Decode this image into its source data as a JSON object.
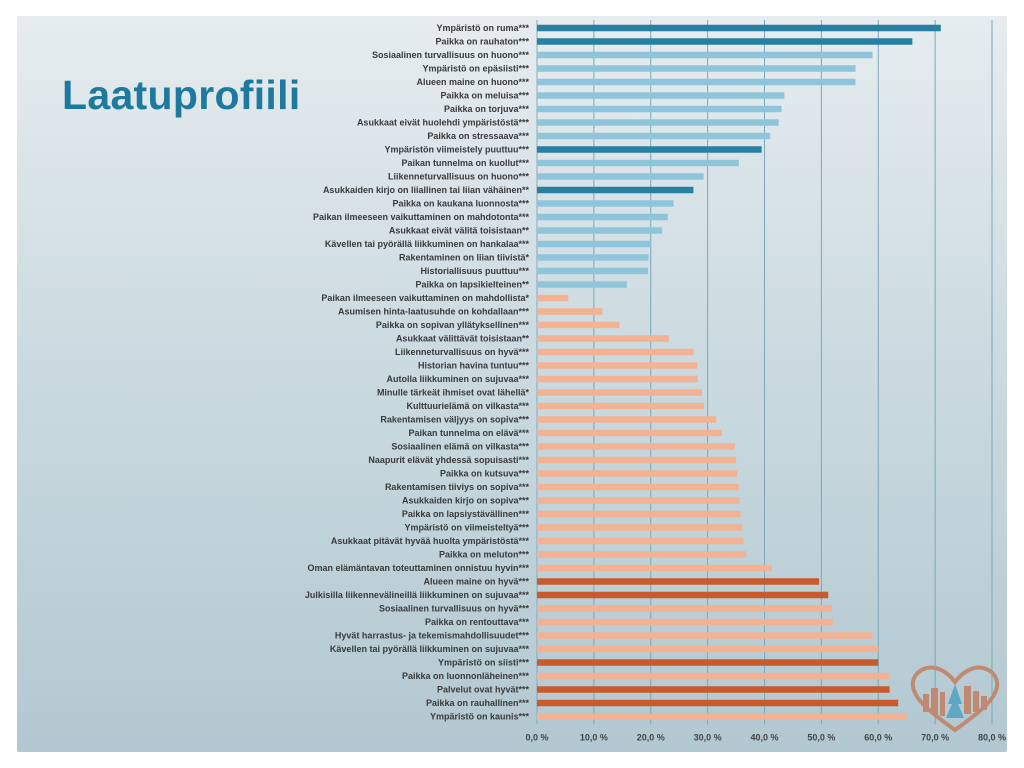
{
  "title": "Laatuprofiili",
  "colors": {
    "negative_light": "#8fc5db",
    "negative_dark": "#287f9f",
    "positive_light": "#f2b293",
    "positive_dark": "#c85a2c",
    "grid": "#7aa7b9",
    "axis_text": "#444444",
    "logo": "#c08a72"
  },
  "logo": {
    "icon": "heart-city-logo-icon"
  },
  "chart_data": {
    "type": "bar",
    "orientation": "horizontal",
    "xlim": [
      0,
      80
    ],
    "xticks": [
      "0,0 %",
      "10,0 %",
      "20,0 %",
      "30,0 %",
      "40,0 %",
      "50,0 %",
      "60,0 %",
      "70,0 %",
      "80,0 %"
    ],
    "grid": "vertical",
    "categories": [
      "Ympäristö on ruma***",
      "Paikka on rauhaton***",
      "Sosiaalinen turvallisuus on huono***",
      "Ympäristö on epäsiisti***",
      "Alueen maine on huono***",
      "Paikka on meluisa***",
      "Paikka on torjuva***",
      "Asukkaat eivät huolehdi ympäristöstä***",
      "Paikka on stressaava***",
      "Ympäristön viimeistely puuttuu***",
      "Paikan tunnelma on kuollut***",
      "Liikenneturvallisuus on huono***",
      "Asukkaiden kirjo on liiallinen tai liian vähäinen**",
      "Paikka on kaukana luonnosta***",
      "Paikan ilmeeseen vaikuttaminen on mahdotonta***",
      "Asukkaat eivät välitä toisistaan**",
      "Kävellen tai pyörällä liikkuminen on hankalaa***",
      "Rakentaminen on liian tiivistä*",
      "Historiallisuus puuttuu***",
      "Paikka on lapsikielteinen**",
      "Paikan ilmeeseen vaikuttaminen on mahdollista*",
      "Asumisen hinta-laatusuhde on kohdallaan***",
      "Paikka on sopivan yllätyksellinen***",
      "Asukkaat välittävät toisistaan**",
      "Liikenneturvallisuus on hyvä***",
      "Historian havina tuntuu***",
      "Autolla liikkuminen on sujuvaa***",
      "Minulle tärkeät ihmiset ovat lähellä*",
      "Kulttuurielämä on vilkasta***",
      "Rakentamisen väljyys on sopiva***",
      "Paikan tunnelma on elävä***",
      "Sosiaalinen elämä on vilkasta***",
      "Naapurit elävät yhdessä sopuisasti***",
      "Paikka on kutsuva***",
      "Rakentamisen tiiviys on sopiva***",
      "Asukkaiden kirjo on sopiva***",
      "Paikka on lapsiystävällinen***",
      "Ympäristö on viimeisteltyä***",
      "Asukkaat pitävät hyvää huolta ympäristöstä***",
      "Paikka on meluton***",
      "Oman elämäntavan toteuttaminen onnistuu hyvin***",
      "Alueen maine on hyvä***",
      "Julkisilla liikennevälineillä liikkuminen on sujuvaa***",
      "Sosiaalinen turvallisuus on hyvä***",
      "Paikka on rentouttava***",
      "Hyvät harrastus- ja tekemismahdollisuudet***",
      "Kävellen tai pyörällä liikkuminen on sujuvaa***",
      "Ympäristö on siisti***",
      "Paikka on luonnonläheinen***",
      "Palvelut ovat hyvät***",
      "Paikka on rauhallinen***",
      "Ympäristö on kaunis***"
    ],
    "values": [
      71,
      66,
      59,
      56,
      56,
      43.5,
      43,
      42.5,
      41,
      39.5,
      35.5,
      29.3,
      27.5,
      24,
      23,
      22,
      20,
      19.6,
      19.5,
      15.8,
      5.5,
      11.5,
      14.5,
      23.2,
      27.5,
      28.2,
      28.3,
      29,
      29.4,
      31.5,
      32.5,
      34.8,
      35,
      35.2,
      35.5,
      35.6,
      35.8,
      36.1,
      36.3,
      36.8,
      41.3,
      49.6,
      51.2,
      51.8,
      52,
      59,
      60,
      60,
      62,
      62,
      63.5,
      65
    ],
    "highlight": [
      true,
      true,
      false,
      false,
      false,
      false,
      false,
      false,
      false,
      true,
      false,
      false,
      true,
      false,
      false,
      false,
      false,
      false,
      false,
      false,
      false,
      false,
      false,
      false,
      false,
      false,
      false,
      false,
      false,
      false,
      false,
      false,
      false,
      false,
      false,
      false,
      false,
      false,
      false,
      false,
      false,
      true,
      true,
      false,
      false,
      false,
      false,
      true,
      false,
      true,
      true,
      false
    ],
    "group": [
      "negative",
      "negative",
      "negative",
      "negative",
      "negative",
      "negative",
      "negative",
      "negative",
      "negative",
      "negative",
      "negative",
      "negative",
      "negative",
      "negative",
      "negative",
      "negative",
      "negative",
      "negative",
      "negative",
      "negative",
      "positive",
      "positive",
      "positive",
      "positive",
      "positive",
      "positive",
      "positive",
      "positive",
      "positive",
      "positive",
      "positive",
      "positive",
      "positive",
      "positive",
      "positive",
      "positive",
      "positive",
      "positive",
      "positive",
      "positive",
      "positive",
      "positive",
      "positive",
      "positive",
      "positive",
      "positive",
      "positive",
      "positive",
      "positive",
      "positive",
      "positive",
      "positive"
    ]
  }
}
